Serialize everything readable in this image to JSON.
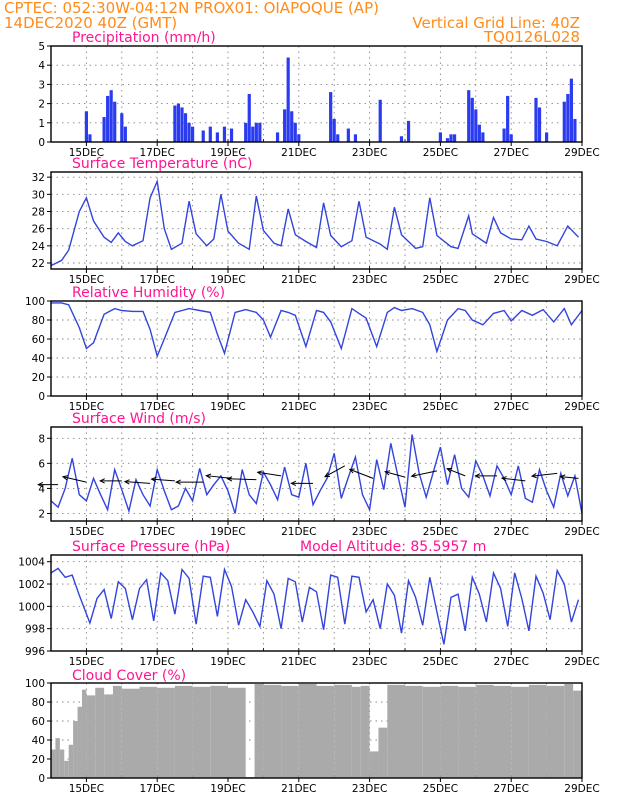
{
  "header": {
    "left_line1": "CPTEC:   052:30W-04:12N   PROX01: OIAPOQUE (AP)",
    "left_line2": "14DEC2020 40Z (GMT)",
    "right_line2": "Vertical Grid Line: 40Z",
    "right_line3": "TQ0126L028"
  },
  "colors": {
    "header": "#ff8c1a",
    "title": "#ff1493",
    "line": "#3344dd",
    "bar": "#2b3cf0",
    "cloud": "#aaaaaa"
  },
  "chart_data": [
    {
      "type": "bar",
      "title": "Precipitation (mm/h)",
      "xticks": [
        "15DEC",
        "17DEC",
        "19DEC",
        "21DEC",
        "23DEC",
        "25DEC",
        "27DEC",
        "29DEC"
      ],
      "xlim_days": [
        14.0,
        29.0
      ],
      "ylim": [
        0,
        5
      ],
      "yticks": [
        0,
        1,
        2,
        3,
        4,
        5
      ],
      "x_day": [
        15.0,
        15.1,
        15.5,
        15.6,
        15.7,
        15.8,
        16.0,
        16.1,
        17.5,
        17.6,
        17.7,
        17.8,
        17.9,
        18.0,
        18.3,
        18.5,
        18.7,
        18.9,
        19.1,
        19.5,
        19.6,
        19.7,
        19.8,
        19.9,
        20.4,
        20.6,
        20.7,
        20.8,
        20.9,
        21.0,
        21.9,
        22.0,
        22.1,
        22.4,
        22.6,
        23.3,
        23.9,
        24.1,
        25.0,
        25.2,
        25.3,
        25.4,
        25.8,
        25.9,
        26.0,
        26.1,
        26.2,
        26.8,
        26.9,
        27.0,
        27.7,
        27.8,
        28.0,
        28.5,
        28.6,
        28.7,
        28.8
      ],
      "values": [
        1.6,
        0.4,
        1.3,
        2.4,
        2.7,
        2.1,
        1.5,
        0.8,
        1.9,
        2.0,
        1.8,
        1.5,
        1.0,
        0.8,
        0.6,
        0.8,
        0.5,
        0.8,
        0.7,
        1.0,
        2.5,
        0.8,
        1.0,
        1.0,
        0.5,
        1.7,
        4.4,
        1.6,
        1.0,
        0.4,
        2.6,
        1.2,
        0.4,
        0.7,
        0.4,
        2.2,
        0.3,
        1.1,
        0.5,
        0.2,
        0.4,
        0.4,
        2.7,
        2.3,
        1.7,
        0.9,
        0.5,
        0.7,
        2.4,
        0.4,
        2.3,
        1.8,
        0.5,
        2.1,
        2.5,
        3.3,
        1.2
      ]
    },
    {
      "type": "line",
      "title": "Surface Temperature (nC)",
      "xticks": [
        "15DEC",
        "17DEC",
        "19DEC",
        "21DEC",
        "23DEC",
        "25DEC",
        "27DEC",
        "29DEC"
      ],
      "xlim_days": [
        14.0,
        29.0
      ],
      "ylim": [
        21.3,
        32.6
      ],
      "yticks": [
        22,
        24,
        26,
        28,
        30,
        32
      ],
      "x_day": [
        14.0,
        14.3,
        14.5,
        14.8,
        15.0,
        15.2,
        15.5,
        15.7,
        15.9,
        16.1,
        16.3,
        16.6,
        16.8,
        17.0,
        17.2,
        17.4,
        17.7,
        17.9,
        18.1,
        18.4,
        18.6,
        18.8,
        19.0,
        19.3,
        19.6,
        19.8,
        20.0,
        20.3,
        20.5,
        20.7,
        20.9,
        21.2,
        21.5,
        21.7,
        21.9,
        22.2,
        22.5,
        22.7,
        22.9,
        23.3,
        23.5,
        23.7,
        23.9,
        24.3,
        24.5,
        24.7,
        24.9,
        25.3,
        25.5,
        25.8,
        25.9,
        26.3,
        26.5,
        26.7,
        27.0,
        27.3,
        27.5,
        27.7,
        28.0,
        28.3,
        28.6,
        28.9
      ],
      "values": [
        21.7,
        22.3,
        23.5,
        28.0,
        29.6,
        26.9,
        25.0,
        24.4,
        25.5,
        24.5,
        24.0,
        24.6,
        29.6,
        31.5,
        26.0,
        23.6,
        24.3,
        29.2,
        25.4,
        24.0,
        24.8,
        30.0,
        25.7,
        24.3,
        23.6,
        29.8,
        25.8,
        24.3,
        24.0,
        28.3,
        25.3,
        24.5,
        23.8,
        29.0,
        25.2,
        23.9,
        24.6,
        29.2,
        25.0,
        24.2,
        23.6,
        28.5,
        25.3,
        23.7,
        23.9,
        29.6,
        25.2,
        23.9,
        23.7,
        27.5,
        25.4,
        24.3,
        27.3,
        25.5,
        24.8,
        24.7,
        26.3,
        24.8,
        24.5,
        24.0,
        26.3,
        25.0
      ]
    },
    {
      "type": "line",
      "title": "Relative Humidity (%)",
      "xticks": [
        "15DEC",
        "17DEC",
        "19DEC",
        "21DEC",
        "23DEC",
        "25DEC",
        "27DEC",
        "29DEC"
      ],
      "xlim_days": [
        14.0,
        29.0
      ],
      "ylim": [
        0,
        100
      ],
      "yticks": [
        0,
        20,
        40,
        60,
        80,
        100
      ],
      "x_day": [
        14.0,
        14.3,
        14.5,
        14.8,
        15.0,
        15.2,
        15.5,
        15.8,
        16.0,
        16.3,
        16.6,
        16.8,
        17.0,
        17.2,
        17.5,
        17.7,
        17.9,
        18.2,
        18.5,
        18.7,
        18.9,
        19.2,
        19.5,
        19.8,
        20.0,
        20.2,
        20.5,
        20.7,
        20.9,
        21.2,
        21.5,
        21.7,
        21.9,
        22.2,
        22.5,
        22.7,
        22.9,
        23.2,
        23.5,
        23.7,
        23.9,
        24.2,
        24.5,
        24.7,
        24.9,
        25.2,
        25.5,
        25.7,
        25.9,
        26.2,
        26.5,
        26.8,
        27.0,
        27.3,
        27.6,
        27.9,
        28.2,
        28.5,
        28.7,
        29.0
      ],
      "values": [
        98,
        98,
        96,
        72,
        50,
        56,
        86,
        92,
        90,
        89,
        89,
        70,
        42,
        60,
        88,
        90,
        92,
        90,
        88,
        65,
        45,
        88,
        91,
        88,
        80,
        62,
        90,
        88,
        85,
        52,
        90,
        88,
        78,
        50,
        92,
        87,
        82,
        52,
        88,
        93,
        90,
        92,
        88,
        75,
        47,
        80,
        92,
        90,
        80,
        75,
        87,
        90,
        79,
        90,
        85,
        91,
        78,
        92,
        75,
        90
      ]
    },
    {
      "type": "line",
      "title": "Surface Wind (m/s)",
      "xticks": [
        "15DEC",
        "17DEC",
        "19DEC",
        "21DEC",
        "23DEC",
        "25DEC",
        "27DEC",
        "29DEC"
      ],
      "xlim_days": [
        14.0,
        29.0
      ],
      "ylim": [
        1.4,
        8.9
      ],
      "yticks": [
        2,
        4,
        6,
        8
      ],
      "x_day": [
        14.0,
        14.2,
        14.4,
        14.6,
        14.8,
        15.0,
        15.2,
        15.4,
        15.6,
        15.8,
        16.0,
        16.2,
        16.4,
        16.6,
        16.8,
        17.0,
        17.2,
        17.4,
        17.6,
        17.8,
        18.0,
        18.2,
        18.4,
        18.6,
        18.8,
        19.0,
        19.2,
        19.4,
        19.6,
        19.8,
        20.0,
        20.2,
        20.4,
        20.6,
        20.8,
        21.0,
        21.2,
        21.4,
        21.6,
        21.8,
        22.0,
        22.2,
        22.4,
        22.6,
        22.8,
        23.0,
        23.2,
        23.4,
        23.6,
        23.8,
        24.0,
        24.2,
        24.4,
        24.6,
        24.8,
        25.0,
        25.2,
        25.4,
        25.6,
        25.8,
        26.0,
        26.2,
        26.4,
        26.6,
        26.8,
        27.0,
        27.2,
        27.4,
        27.6,
        27.8,
        28.0,
        28.2,
        28.4,
        28.6,
        28.8,
        29.0
      ],
      "values": [
        3.0,
        2.5,
        4.0,
        6.4,
        3.5,
        3.0,
        4.8,
        3.5,
        2.3,
        5.5,
        3.9,
        2.2,
        4.7,
        3.5,
        2.6,
        5.5,
        3.8,
        2.3,
        2.6,
        4.0,
        3.0,
        5.6,
        3.5,
        4.3,
        5.0,
        3.8,
        2.0,
        5.5,
        3.5,
        2.8,
        5.3,
        4.3,
        3.1,
        5.7,
        3.5,
        3.3,
        6.0,
        2.7,
        3.8,
        4.8,
        6.8,
        3.2,
        4.9,
        6.5,
        3.5,
        2.3,
        6.3,
        3.9,
        7.6,
        5.0,
        2.5,
        8.3,
        5.2,
        3.3,
        5.3,
        7.3,
        4.3,
        6.7,
        4.0,
        3.3,
        6.2,
        5.0,
        3.4,
        5.8,
        4.8,
        3.5,
        5.8,
        3.2,
        2.9,
        5.5,
        3.8,
        2.5,
        5.2,
        3.4,
        5.0,
        2.0
      ],
      "vectors_day": [
        14.2,
        15.0,
        16.0,
        16.8,
        17.5,
        18.3,
        19.1,
        19.8,
        20.5,
        21.4,
        22.3,
        23.1,
        24.0,
        24.9,
        25.7,
        26.6,
        27.4,
        28.3,
        28.9
      ],
      "vectors_speed": [
        4.3,
        4.5,
        4.6,
        4.4,
        4.6,
        4.5,
        4.8,
        4.7,
        5.0,
        4.4,
        5.8,
        4.8,
        4.9,
        5.4,
        5.0,
        5.0,
        4.6,
        5.2,
        4.8
      ],
      "vectors_u": [
        -2.2,
        -2.6,
        -2.4,
        -2.8,
        -2.6,
        -3.0,
        -2.8,
        -3.2,
        -2.6,
        -2.4,
        -2.2,
        -2.6,
        -2.2,
        -2.8,
        -2.0,
        -2.4,
        -2.6,
        -2.8,
        -2.0
      ],
      "vectors_v": [
        0.0,
        0.6,
        0.0,
        0.2,
        0.2,
        0.0,
        0.3,
        0.1,
        0.4,
        0.0,
        -1.2,
        1.0,
        0.6,
        -0.6,
        0.8,
        0.0,
        0.3,
        -0.3,
        0.2
      ]
    },
    {
      "type": "line",
      "title": "Surface Pressure (hPa)",
      "annotation": "Model Altitude: 85.5957 m",
      "xticks": [
        "15DEC",
        "17DEC",
        "19DEC",
        "21DEC",
        "23DEC",
        "25DEC",
        "27DEC",
        "29DEC"
      ],
      "xlim_days": [
        14.0,
        29.0
      ],
      "ylim": [
        996,
        1004.6
      ],
      "yticks": [
        996,
        998,
        1000,
        1002,
        1004
      ],
      "x_day": [
        14.0,
        14.2,
        14.4,
        14.6,
        14.8,
        15.1,
        15.3,
        15.5,
        15.7,
        15.9,
        16.1,
        16.3,
        16.5,
        16.7,
        16.9,
        17.1,
        17.3,
        17.5,
        17.7,
        17.9,
        18.1,
        18.3,
        18.5,
        18.7,
        18.9,
        19.1,
        19.3,
        19.5,
        19.7,
        19.9,
        20.1,
        20.3,
        20.5,
        20.7,
        20.9,
        21.1,
        21.3,
        21.5,
        21.7,
        21.9,
        22.1,
        22.3,
        22.5,
        22.7,
        22.9,
        23.1,
        23.3,
        23.5,
        23.7,
        23.9,
        24.1,
        24.3,
        24.5,
        24.7,
        24.9,
        25.1,
        25.3,
        25.5,
        25.7,
        25.9,
        26.1,
        26.3,
        26.5,
        26.7,
        26.9,
        27.1,
        27.3,
        27.5,
        27.7,
        27.9,
        28.1,
        28.3,
        28.5,
        28.7,
        28.9
      ],
      "values": [
        1003.0,
        1003.4,
        1002.6,
        1002.8,
        1001.0,
        998.5,
        1000.7,
        1001.5,
        998.9,
        1002.2,
        1001.6,
        998.8,
        1001.6,
        1002.4,
        998.7,
        1003.0,
        1002.3,
        999.3,
        1003.3,
        1002.5,
        998.4,
        1002.7,
        1002.6,
        999.1,
        1003.3,
        1001.8,
        998.3,
        1000.6,
        999.5,
        998.2,
        1002.3,
        1001.1,
        998.0,
        1002.5,
        1002.2,
        998.6,
        1001.7,
        1001.3,
        997.9,
        1002.8,
        1002.6,
        998.4,
        1002.7,
        1002.6,
        999.5,
        1000.6,
        998.0,
        1002.0,
        1001.0,
        997.6,
        1002.3,
        1000.8,
        998.3,
        1002.6,
        999.5,
        996.6,
        1000.8,
        1001.1,
        997.8,
        1002.6,
        1001.1,
        998.6,
        1003.0,
        1001.6,
        998.2,
        1003.0,
        1000.7,
        997.8,
        1002.7,
        1001.2,
        998.8,
        1003.2,
        1002.0,
        998.6,
        1000.6
      ]
    },
    {
      "type": "bar",
      "title": "Cloud Cover (%)",
      "xticks": [
        "15DEC",
        "17DEC",
        "19DEC",
        "21DEC",
        "23DEC",
        "25DEC",
        "27DEC",
        "29DEC"
      ],
      "xlim_days": [
        14.0,
        29.0
      ],
      "ylim": [
        0,
        100
      ],
      "yticks": [
        0,
        20,
        40,
        60,
        80,
        100
      ],
      "x_day": [
        14.0,
        14.125,
        14.25,
        14.375,
        14.5,
        14.625,
        14.75,
        14.875,
        15.0,
        15.25,
        15.5,
        15.75,
        16.0,
        16.5,
        17.0,
        17.5,
        18.0,
        18.5,
        19.0,
        19.5,
        19.75,
        20.0,
        20.5,
        21.0,
        21.5,
        22.0,
        22.5,
        22.75,
        23.0,
        23.25,
        23.5,
        24.0,
        24.5,
        25.0,
        25.5,
        26.0,
        26.5,
        27.0,
        27.5,
        28.0,
        28.5,
        28.75
      ],
      "values": [
        30,
        42,
        30,
        18,
        35,
        60,
        75,
        93,
        87,
        95,
        88,
        97,
        94,
        96,
        95,
        97,
        96,
        97,
        95,
        1,
        99,
        98,
        97,
        99,
        97,
        98,
        96,
        97,
        28,
        53,
        98,
        97,
        96,
        97,
        96,
        98,
        97,
        96,
        98,
        97,
        99,
        92
      ]
    }
  ]
}
